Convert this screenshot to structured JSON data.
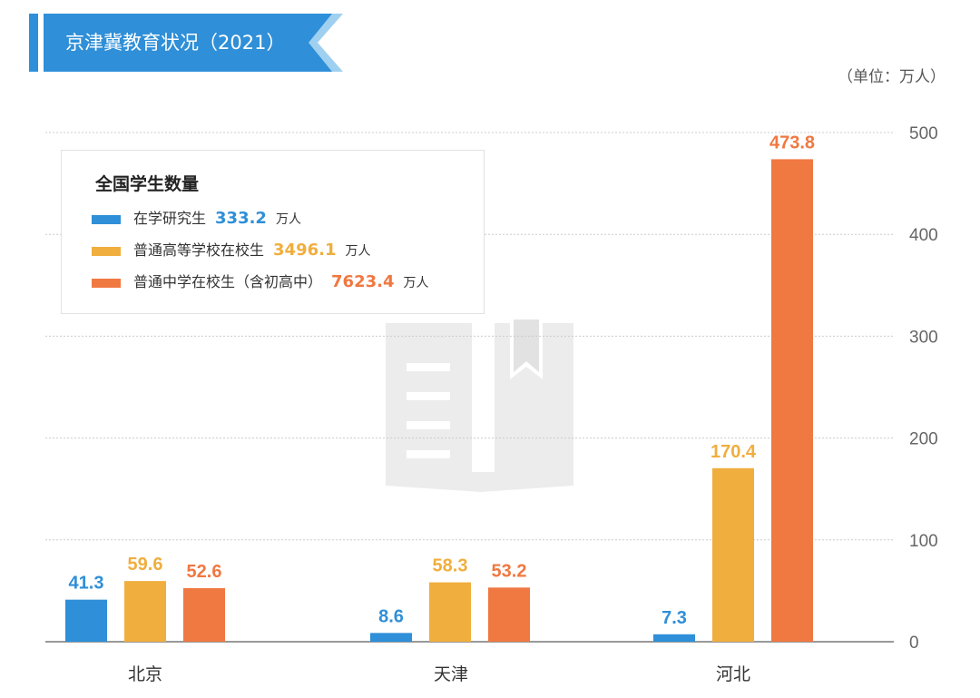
{
  "header": {
    "title": "京津冀教育状况（2021）",
    "unit": "（单位：万人）"
  },
  "legend": {
    "title": "全国学生数量",
    "items": [
      {
        "label": "在学研究生",
        "value": "333.2",
        "unit": "万人",
        "color": "#2f8fd8"
      },
      {
        "label": "普通高等学校在校生",
        "value": "3496.1",
        "unit": "万人",
        "color": "#f0ae3e"
      },
      {
        "label": "普通中学在校生（含初高中）",
        "value": "7623.4",
        "unit": "万人",
        "color": "#f07841"
      }
    ]
  },
  "colors": {
    "title_bg": "#2f8fd8",
    "title_accent": "#9fd0f0",
    "grid": "#cccccc",
    "axis": "#999999",
    "watermark": "#ececec"
  },
  "chart_data": {
    "type": "bar",
    "categories": [
      "北京",
      "天津",
      "河北"
    ],
    "series": [
      {
        "name": "在学研究生",
        "values": [
          41.3,
          8.6,
          7.3
        ],
        "color": "#2f8fd8"
      },
      {
        "name": "普通高等学校在校生",
        "values": [
          59.6,
          58.3,
          170.4
        ],
        "color": "#f0ae3e"
      },
      {
        "name": "普通中学在校生（含初高中）",
        "values": [
          52.6,
          53.2,
          473.8
        ],
        "color": "#f07841"
      }
    ],
    "yticks": [
      0,
      100,
      200,
      300,
      400,
      500
    ],
    "ylim": [
      0,
      500
    ],
    "grid": true,
    "y_axis_position": "right",
    "legend_position": "top-left",
    "data_labels": true
  }
}
